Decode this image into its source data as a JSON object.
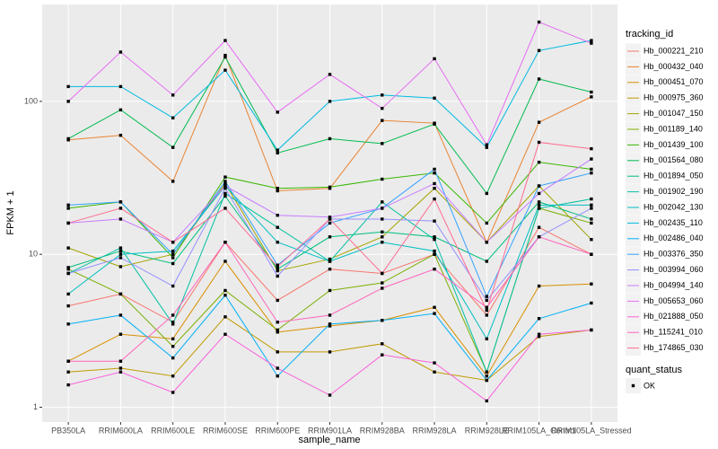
{
  "chart_data": {
    "type": "line",
    "x_label": "sample_name",
    "y_label": "FPKM + 1",
    "categories": [
      "PB350LA",
      "RRIM600LA",
      "RRIM600LE",
      "RRIM600SE",
      "RRIM600PE",
      "RRIM901LA",
      "RRIM928BA",
      "RRIM928LA",
      "RRIM928LE",
      "RRIM105LA_Control",
      "RRIM105LA_Stressed"
    ],
    "log_y": true,
    "ylim": [
      0.8,
      430
    ],
    "yticks": [
      1,
      10,
      100
    ],
    "grid": true,
    "legend_title": "tracking_id",
    "point_legend_title": "quant_status",
    "point_legend_label": "OK",
    "point_color": "#000000",
    "series": [
      {
        "name": "Hb_000221_210",
        "color": "#F8766D",
        "values": [
          4.6,
          5.5,
          3.6,
          12,
          5,
          8,
          7.5,
          10,
          4,
          15,
          10
        ]
      },
      {
        "name": "Hb_000432_040",
        "color": "#EA8331",
        "values": [
          56,
          60,
          30,
          200,
          26,
          27,
          75,
          72,
          12,
          73,
          107
        ]
      },
      {
        "name": "Hb_000451_070",
        "color": "#D89000",
        "values": [
          2,
          3,
          2.8,
          9,
          3.1,
          3.4,
          3.7,
          4.5,
          1.6,
          6.2,
          6.4
        ]
      },
      {
        "name": "Hb_000975_360",
        "color": "#C09B00",
        "values": [
          1.7,
          1.8,
          1.6,
          3.9,
          2.3,
          2.3,
          2.6,
          1.7,
          1.5,
          2.9,
          3.2
        ]
      },
      {
        "name": "Hb_001047_150",
        "color": "#A3A500",
        "values": [
          11,
          8.3,
          10,
          29,
          7.8,
          9.3,
          13,
          27,
          12,
          28,
          12.5
        ]
      },
      {
        "name": "Hb_001189_140",
        "color": "#7CAE00",
        "values": [
          8,
          5.5,
          2.5,
          5.8,
          3.2,
          5.8,
          6.5,
          10,
          1.7,
          20,
          16
        ]
      },
      {
        "name": "Hb_001439_100",
        "color": "#39B600",
        "values": [
          20,
          22,
          9.5,
          32,
          27,
          27.5,
          31,
          34,
          16,
          40,
          36
        ]
      },
      {
        "name": "Hb_001564_080",
        "color": "#00BB4E",
        "values": [
          57,
          88,
          50,
          195,
          46,
          57,
          53,
          71,
          25,
          140,
          115
        ]
      },
      {
        "name": "Hb_001894_050",
        "color": "#00BF7D",
        "values": [
          8.2,
          10.5,
          8.7,
          24,
          8,
          13,
          14,
          13,
          9,
          22,
          17
        ]
      },
      {
        "name": "Hb_001902_190",
        "color": "#00C1A3",
        "values": [
          7.5,
          11,
          3.5,
          25,
          15,
          9,
          22,
          12.5,
          1.7,
          20,
          23
        ]
      },
      {
        "name": "Hb_002042_130",
        "color": "#00BFC4",
        "values": [
          5.5,
          10,
          10.5,
          28,
          12,
          9,
          12,
          10.5,
          2.8,
          21,
          21
        ]
      },
      {
        "name": "Hb_002435_110",
        "color": "#00BAE0",
        "values": [
          125,
          125,
          78,
          160,
          48,
          100,
          110,
          105,
          50,
          215,
          250
        ]
      },
      {
        "name": "Hb_002486_040",
        "color": "#00B0F6",
        "values": [
          3.5,
          4,
          2.1,
          5.4,
          1.6,
          3.5,
          3.7,
          4.1,
          1.5,
          3.8,
          4.8
        ]
      },
      {
        "name": "Hb_003376_350",
        "color": "#35A2FF",
        "values": [
          21,
          22,
          10,
          30,
          8.5,
          16,
          20,
          36,
          5.3,
          28,
          34
        ]
      },
      {
        "name": "Hb_003994_060",
        "color": "#9590FF",
        "values": [
          7.5,
          9.5,
          6.2,
          27,
          7.2,
          17,
          17,
          16.5,
          5,
          13,
          20
        ]
      },
      {
        "name": "Hb_004994_140",
        "color": "#C77CFF",
        "values": [
          16,
          17,
          12,
          28,
          18,
          17.5,
          20,
          29,
          12,
          25,
          42
        ]
      },
      {
        "name": "Hb_005653_060",
        "color": "#E76BF3",
        "values": [
          100,
          210,
          110,
          250,
          85,
          150,
          90,
          190,
          52,
          330,
          240
        ]
      },
      {
        "name": "Hb_021888_050",
        "color": "#FA62DB",
        "values": [
          1.4,
          1.7,
          1.25,
          3,
          1.8,
          1.2,
          2.2,
          1.95,
          1.1,
          3,
          3.2
        ]
      },
      {
        "name": "Hb_115241_010",
        "color": "#FF62BC",
        "values": [
          2,
          2,
          4,
          12,
          3.6,
          4,
          6,
          8,
          4.5,
          13,
          10
        ]
      },
      {
        "name": "Hb_174865_030",
        "color": "#FF6C91",
        "values": [
          16,
          20,
          12,
          20,
          8.3,
          17,
          7.5,
          23,
          4.3,
          54,
          49
        ]
      }
    ]
  }
}
